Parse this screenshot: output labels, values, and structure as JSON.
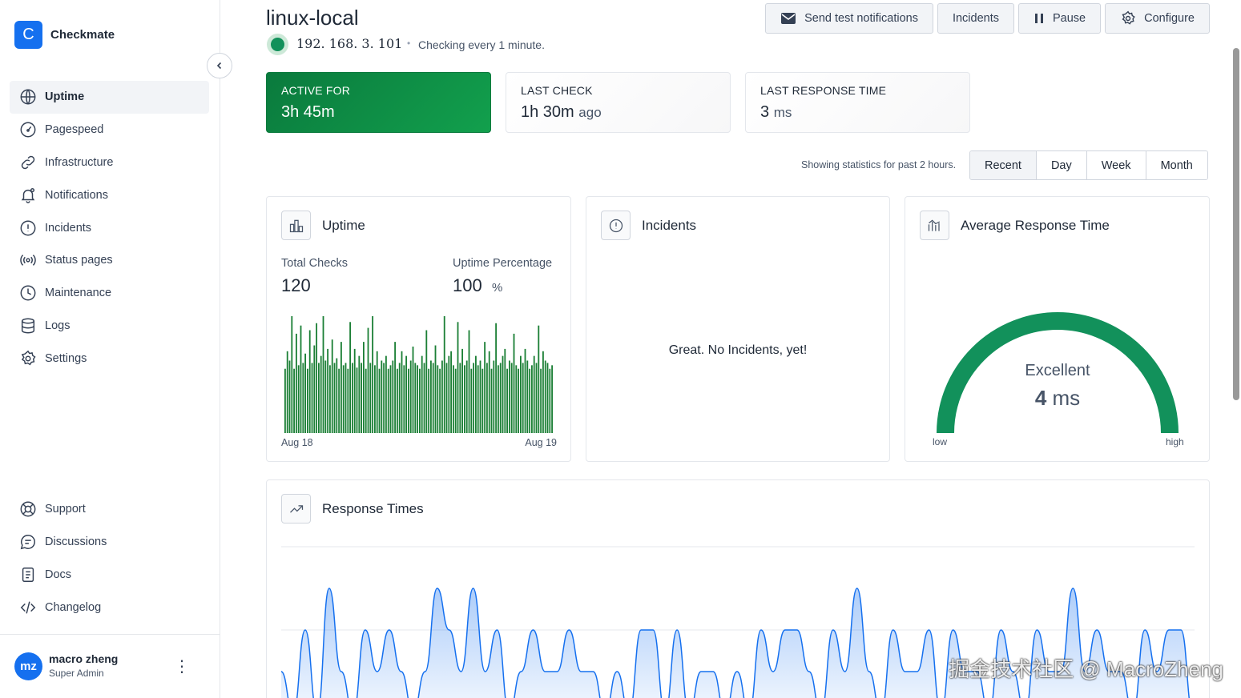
{
  "brand": {
    "logo_letter": "C",
    "name": "Checkmate"
  },
  "sidebar": {
    "items": [
      {
        "label": "Uptime",
        "icon": "globe-icon",
        "active": true
      },
      {
        "label": "Pagespeed",
        "icon": "gauge-icon"
      },
      {
        "label": "Infrastructure",
        "icon": "link-icon"
      },
      {
        "label": "Notifications",
        "icon": "bell-icon"
      },
      {
        "label": "Incidents",
        "icon": "alert-circle-icon"
      },
      {
        "label": "Status pages",
        "icon": "broadcast-icon"
      },
      {
        "label": "Maintenance",
        "icon": "clock-icon"
      },
      {
        "label": "Logs",
        "icon": "database-icon"
      },
      {
        "label": "Settings",
        "icon": "gear-icon"
      }
    ],
    "bottom_items": [
      {
        "label": "Support",
        "icon": "lifebuoy-icon"
      },
      {
        "label": "Discussions",
        "icon": "chat-icon"
      },
      {
        "label": "Docs",
        "icon": "doc-icon"
      },
      {
        "label": "Changelog",
        "icon": "code-icon"
      }
    ]
  },
  "user": {
    "initials": "mz",
    "name": "macro zheng",
    "role": "Super Admin"
  },
  "header": {
    "title": "linux-local",
    "ip": "192. 168. 3. 101",
    "separator": "•",
    "checking": "Checking every 1 minute.",
    "buttons": {
      "send_test": "Send test notifications",
      "incidents": "Incidents",
      "pause": "Pause",
      "configure": "Configure"
    }
  },
  "stats": {
    "active_for": {
      "label": "ACTIVE FOR",
      "value": "3h 45m"
    },
    "last_check": {
      "label": "LAST CHECK",
      "value": "1h 30m",
      "unit": "ago"
    },
    "last_response": {
      "label": "LAST RESPONSE TIME",
      "value": "3",
      "unit": "ms"
    }
  },
  "range": {
    "showing": "Showing statistics for past 2 hours.",
    "options": [
      "Recent",
      "Day",
      "Week",
      "Month"
    ],
    "selected": "Recent"
  },
  "uptime_panel": {
    "title": "Uptime",
    "total_checks_label": "Total Checks",
    "total_checks": "120",
    "uptime_pct_label": "Uptime Percentage",
    "uptime_pct": "100",
    "pct_sign": "%",
    "x_start": "Aug 18",
    "x_end": "Aug 19",
    "bar_color": "#1b7f35"
  },
  "incidents_panel": {
    "title": "Incidents",
    "message": "Great. No Incidents, yet!"
  },
  "avg_panel": {
    "title": "Average Response Time",
    "rating": "Excellent",
    "value": "4",
    "unit": "ms",
    "low": "low",
    "high": "high",
    "gauge_color": "#12915b",
    "gauge_fraction": 1.0
  },
  "response_panel": {
    "title": "Response Times",
    "line_color": "#1570ef"
  },
  "watermark": "掘金技术社区 @ MacroZheng",
  "chart_data": [
    {
      "type": "bar",
      "title": "Uptime",
      "xlabel": "",
      "ylabel": "",
      "x_range": [
        "Aug 18",
        "Aug 19"
      ],
      "values": [
        0.55,
        0.7,
        0.62,
        1.0,
        0.55,
        0.85,
        0.58,
        0.92,
        0.6,
        0.68,
        0.55,
        0.88,
        0.6,
        0.75,
        0.94,
        0.6,
        0.66,
        1.0,
        0.62,
        0.72,
        0.58,
        0.8,
        0.6,
        0.64,
        0.55,
        0.78,
        0.58,
        0.6,
        0.55,
        0.95,
        0.6,
        0.72,
        0.56,
        0.66,
        0.6,
        0.78,
        0.55,
        0.9,
        0.6,
        1.0,
        0.58,
        0.7,
        0.55,
        0.62,
        0.6,
        0.66,
        0.55,
        0.58,
        0.62,
        0.78,
        0.55,
        0.6,
        0.7,
        0.58,
        0.66,
        0.55,
        0.62,
        0.74,
        0.6,
        0.58,
        0.55,
        0.66,
        0.6,
        0.88,
        0.55,
        0.62,
        0.6,
        0.75,
        0.58,
        0.55,
        0.62,
        1.0,
        0.6,
        0.66,
        0.7,
        0.58,
        0.55,
        0.95,
        0.6,
        0.72,
        0.58,
        0.62,
        0.88,
        0.55,
        0.6,
        0.66,
        0.58,
        0.62,
        0.55,
        0.78,
        0.6,
        0.7,
        0.55,
        0.62,
        0.94,
        0.58,
        0.6,
        0.66,
        0.72,
        0.55,
        0.62,
        0.6,
        0.85,
        0.58,
        0.55,
        0.66,
        0.6,
        0.72,
        0.62,
        0.55,
        0.58,
        0.66,
        0.6,
        0.92,
        0.55,
        0.7,
        0.62,
        0.6,
        0.55,
        0.58
      ],
      "ylim": [
        0,
        1
      ]
    },
    {
      "type": "area",
      "title": "Response Times",
      "values": [
        2,
        1,
        3,
        1,
        4,
        2,
        1,
        3,
        2,
        3,
        2,
        1,
        2,
        4,
        3,
        2,
        4,
        2,
        3,
        1,
        2,
        3,
        2,
        2,
        3,
        2,
        2,
        1,
        2,
        1,
        3,
        3,
        1,
        3,
        1,
        2,
        2,
        1,
        2,
        1,
        3,
        2,
        3,
        3,
        2,
        1,
        3,
        2,
        4,
        2,
        1,
        3,
        2,
        2,
        3,
        1,
        3,
        2,
        2,
        1,
        3,
        2,
        1,
        3,
        2,
        2,
        4,
        2,
        3,
        2,
        2,
        1,
        3,
        2,
        3,
        3,
        1
      ],
      "ylim": [
        0,
        5
      ]
    }
  ]
}
